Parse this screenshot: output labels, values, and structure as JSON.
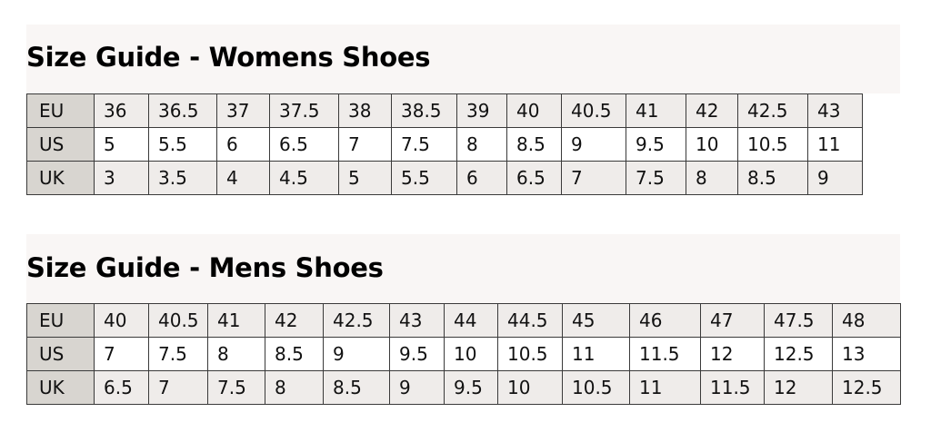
{
  "womens": {
    "title": "Size Guide - Womens Shoes",
    "rows": [
      {
        "label": "EU",
        "values": [
          "36",
          "36.5",
          "37",
          "37.5",
          "38",
          "38.5",
          "39",
          "40",
          "40.5",
          "41",
          "42",
          "42.5",
          "43"
        ]
      },
      {
        "label": "US",
        "values": [
          "5",
          "5.5",
          "6",
          "6.5",
          "7",
          "7.5",
          "8",
          "8.5",
          "9",
          "9.5",
          "10",
          "10.5",
          "11"
        ]
      },
      {
        "label": "UK",
        "values": [
          "3",
          "3.5",
          "4",
          "4.5",
          "5",
          "5.5",
          "6",
          "6.5",
          "7",
          "7.5",
          "8",
          "8.5",
          "9"
        ]
      }
    ]
  },
  "mens": {
    "title": "Size Guide - Mens Shoes",
    "rows": [
      {
        "label": "EU",
        "values": [
          "40",
          "40.5",
          "41",
          "42",
          "42.5",
          "43",
          "44",
          "44.5",
          "45",
          "46",
          "47",
          "47.5",
          "48"
        ]
      },
      {
        "label": "US",
        "values": [
          "7",
          "7.5",
          "8",
          "8.5",
          "9",
          "9.5",
          "10",
          "10.5",
          "11",
          "11.5",
          "12",
          "12.5",
          "13"
        ]
      },
      {
        "label": "UK",
        "values": [
          "6.5",
          "7",
          "7.5",
          "8",
          "8.5",
          "9",
          "9.5",
          "10",
          "10.5",
          "11",
          "11.5",
          "12",
          "12.5"
        ]
      }
    ]
  }
}
